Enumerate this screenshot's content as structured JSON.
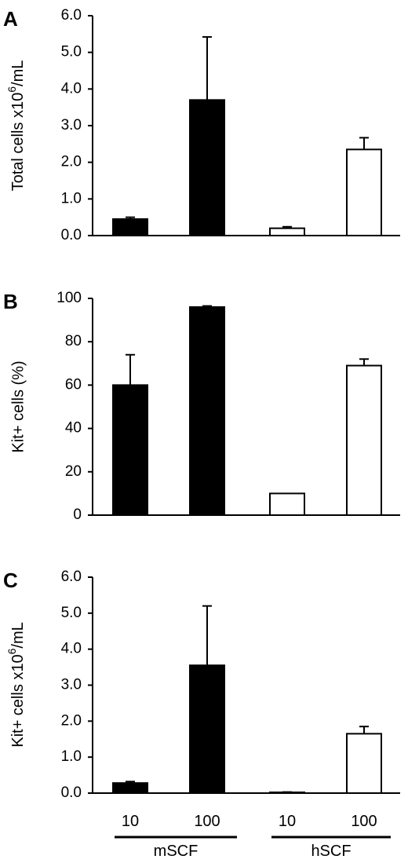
{
  "chart_data": [
    {
      "type": "bar",
      "panel": "A",
      "ylabel": "Total cells x10⁶/mL",
      "ylim": [
        0,
        6.0
      ],
      "yticks": [
        "0.0",
        "1.0",
        "2.0",
        "3.0",
        "4.0",
        "5.0",
        "6.0"
      ],
      "values": [
        0.45,
        3.7,
        0.2,
        2.35
      ],
      "errors": [
        0.05,
        1.72,
        0.04,
        0.32
      ],
      "fills": [
        "#000000",
        "#000000",
        "#ffffff",
        "#ffffff"
      ]
    },
    {
      "type": "bar",
      "panel": "B",
      "ylabel": "Kit+ cells (%)",
      "ylim": [
        0,
        100
      ],
      "yticks": [
        "0",
        "20",
        "40",
        "60",
        "80",
        "100"
      ],
      "values": [
        60,
        96,
        10,
        69
      ],
      "errors": [
        14,
        0.5,
        0,
        3
      ],
      "fills": [
        "#000000",
        "#000000",
        "#ffffff",
        "#ffffff"
      ]
    },
    {
      "type": "bar",
      "panel": "C",
      "ylabel": "Kit+ cells x10⁶/mL",
      "ylim": [
        0,
        6.0
      ],
      "yticks": [
        "0.0",
        "1.0",
        "2.0",
        "3.0",
        "4.0",
        "5.0",
        "6.0"
      ],
      "values": [
        0.28,
        3.55,
        0.02,
        1.65
      ],
      "errors": [
        0.04,
        1.65,
        0.01,
        0.2
      ],
      "fills": [
        "#000000",
        "#000000",
        "#ffffff",
        "#ffffff"
      ]
    }
  ],
  "categories": [
    "10",
    "100",
    "10",
    "100"
  ],
  "groups": [
    "mSCF",
    "hSCF"
  ]
}
